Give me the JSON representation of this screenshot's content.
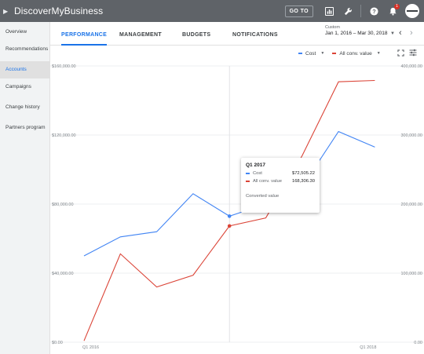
{
  "topbar": {
    "app_title": "DiscoverMyBusiness",
    "goto_label": "GO TO",
    "notification_count": "1"
  },
  "sidebar": {
    "items": [
      {
        "label": "Overview"
      },
      {
        "label": "Recommendations"
      },
      {
        "label": "Accounts",
        "active": true
      },
      {
        "label": "Campaigns"
      },
      {
        "label": "Change history"
      },
      {
        "label": "Partners program"
      }
    ]
  },
  "tabs": [
    {
      "label": "PERFORMANCE",
      "active": true
    },
    {
      "label": "MANAGEMENT"
    },
    {
      "label": "BUDGETS"
    },
    {
      "label": "NOTIFICATIONS"
    }
  ],
  "date_range": {
    "type_label": "Custom",
    "range": "Jan 1, 2016 – Mar 30, 2018"
  },
  "metrics": [
    {
      "label": "Cost",
      "color": "#4285f4"
    },
    {
      "label": "All conv. value",
      "color": "#db4437"
    }
  ],
  "tooltip": {
    "title": "Q1 2017",
    "rows": [
      {
        "label": "Cost",
        "value": "$72,505.22",
        "color": "#4285f4"
      },
      {
        "label": "All conv. value",
        "value": "168,306.30",
        "color": "#db4437"
      }
    ],
    "footer": "Converted value"
  },
  "chart_data": {
    "type": "line",
    "x_start_label": "Q1 2016",
    "x_end_label": "Q1 2018",
    "left_axis": {
      "ticks": [
        "$0.00",
        "$40,000.00",
        "$80,000.00",
        "$120,000.00",
        "$160,000.00"
      ],
      "values": [
        0,
        40000,
        80000,
        120000,
        160000
      ]
    },
    "right_axis": {
      "ticks": [
        "0.00",
        "100,000.00",
        "200,000.00",
        "300,000.00",
        "400,000.00"
      ],
      "values": [
        0,
        100000,
        200000,
        300000,
        400000
      ]
    },
    "grid": true,
    "series": [
      {
        "name": "Cost",
        "axis": "left",
        "color": "#4285f4",
        "values": [
          50000,
          61000,
          64000,
          86000,
          73000,
          80000,
          90000,
          122000,
          113000
        ]
      },
      {
        "name": "All conv. value",
        "axis": "right",
        "color": "#db4437",
        "values": [
          2000,
          128000,
          80000,
          97000,
          168306,
          180000,
          270000,
          377000,
          379000
        ]
      }
    ],
    "highlight_index": 4
  }
}
